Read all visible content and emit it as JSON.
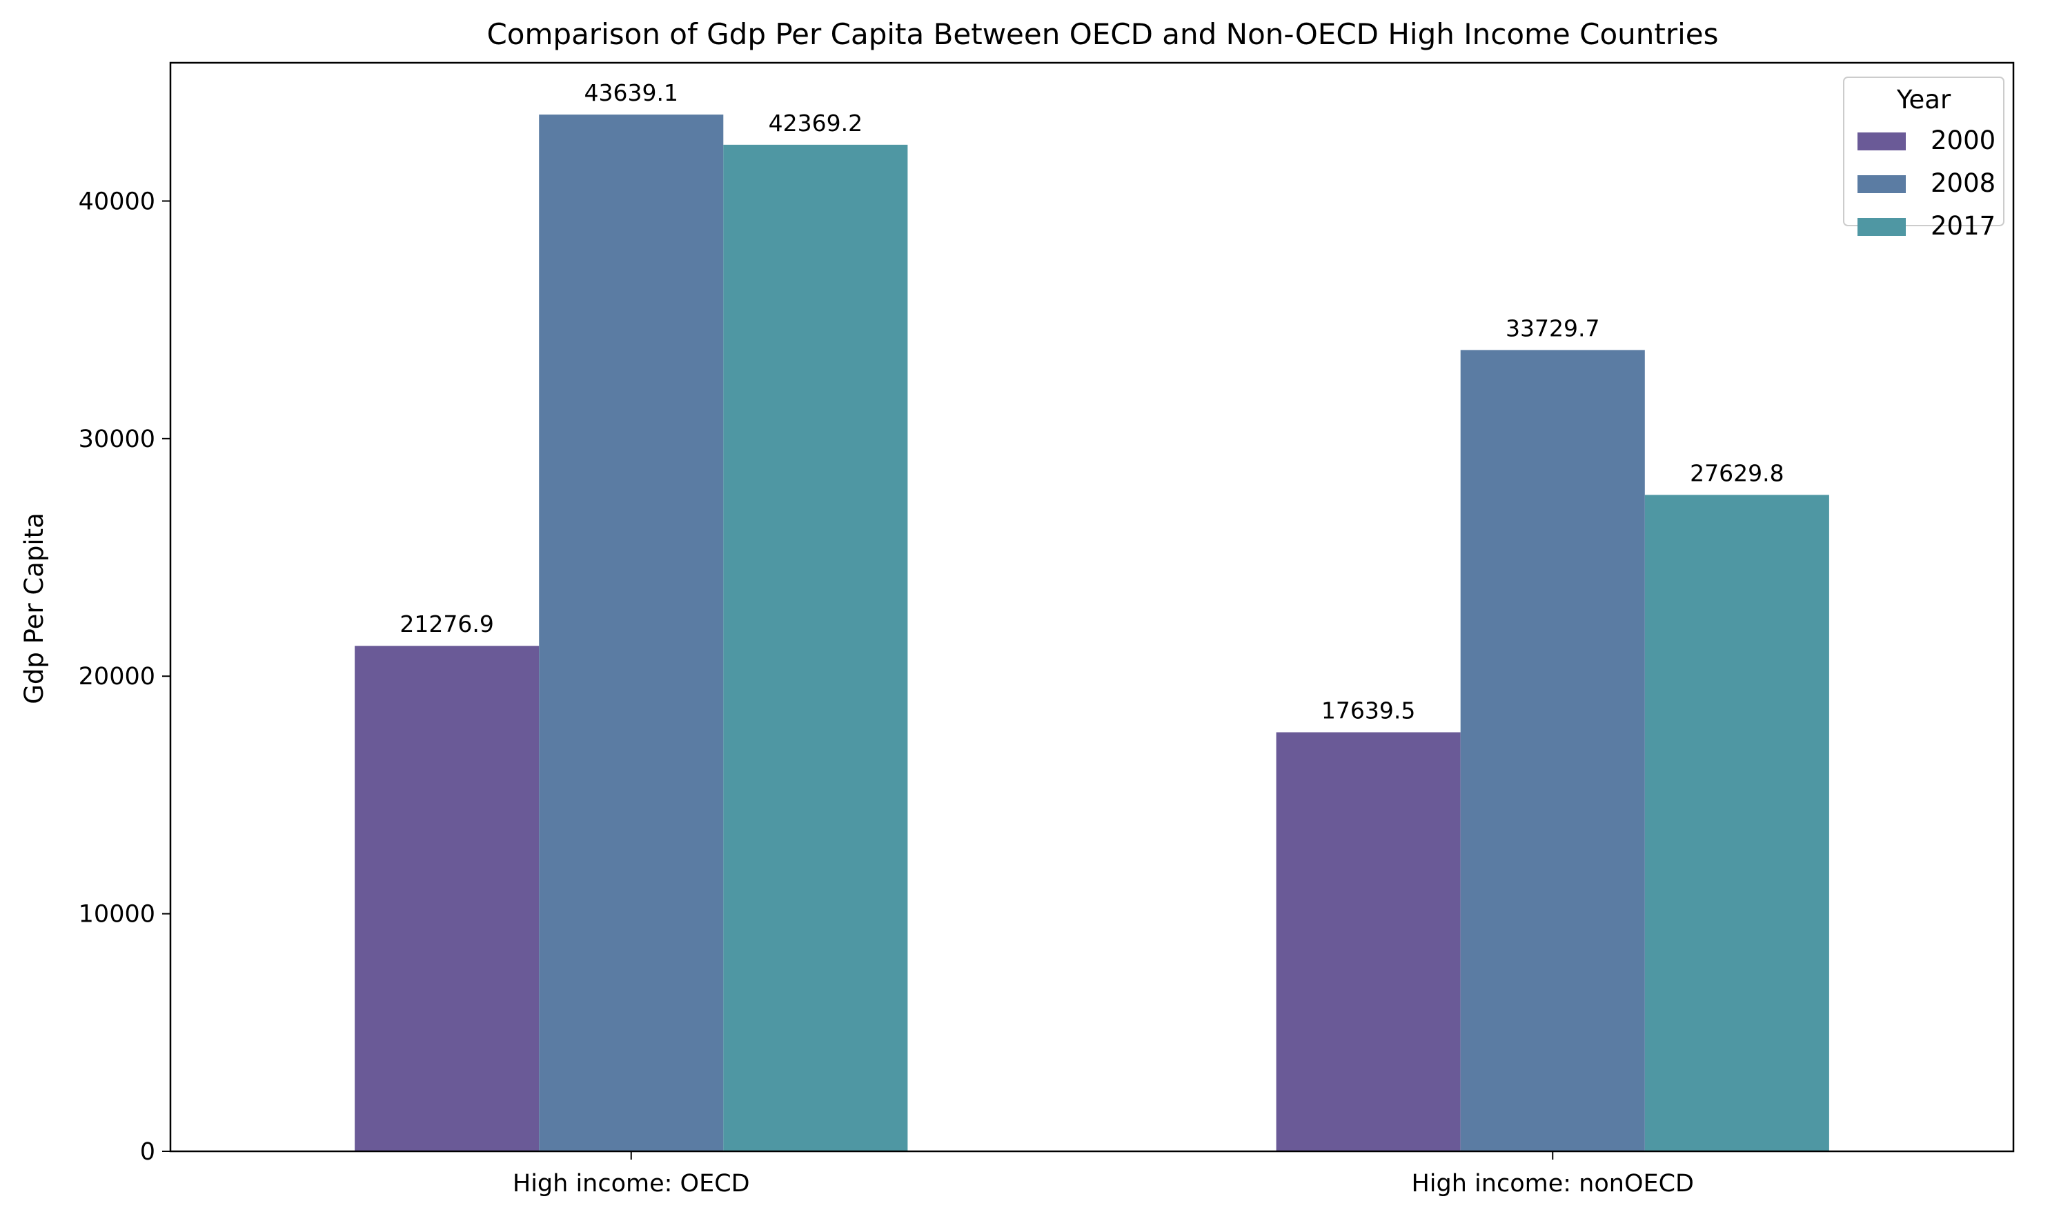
{
  "chart_data": {
    "type": "bar",
    "title": "Comparison of Gdp Per Capita Between OECD and Non-OECD High Income Countries",
    "xlabel": "",
    "ylabel": "Gdp Per Capita",
    "categories": [
      "High income: OECD",
      "High income: nonOECD"
    ],
    "series": [
      {
        "name": "2000",
        "values": [
          21276.9,
          17639.5
        ],
        "color": "#6a5a97"
      },
      {
        "name": "2008",
        "values": [
          43639.1,
          33729.7
        ],
        "color": "#5b7ca3"
      },
      {
        "name": "2017",
        "values": [
          42369.2,
          27629.8
        ],
        "color": "#4f97a3"
      }
    ],
    "ylim": [
      0,
      45820
    ],
    "yticks": [
      0,
      10000,
      20000,
      30000,
      40000
    ],
    "data_labels": true,
    "legend": {
      "title": "Year",
      "placement": "top-right"
    },
    "grid": false
  }
}
